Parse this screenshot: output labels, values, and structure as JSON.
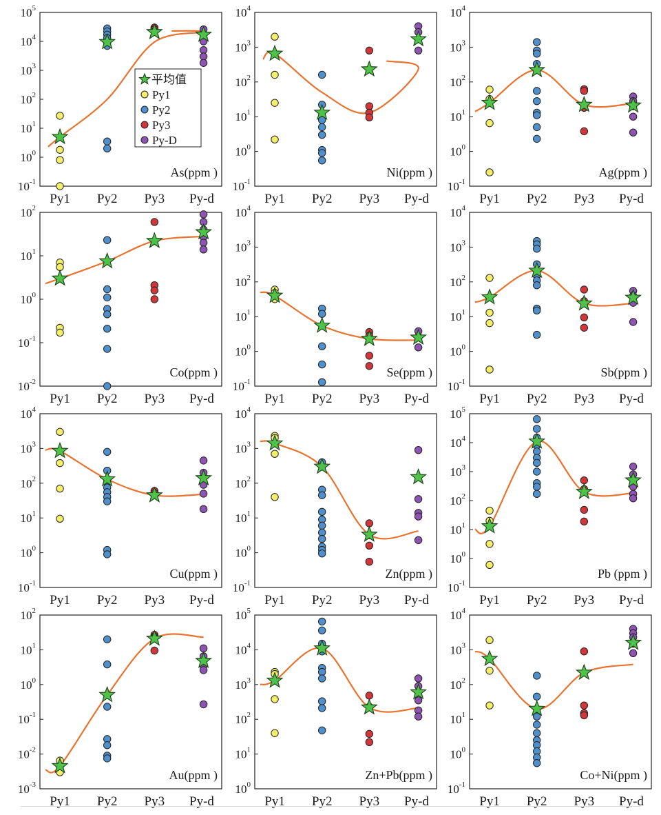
{
  "colors": {
    "Py1": "#f3ef6b",
    "Py2": "#4f90cc",
    "Py3": "#d1363b",
    "Py-d": "#8d54b2",
    "mean": "#4fc249",
    "trend": "#e8732f"
  },
  "legend": {
    "title": "平均值",
    "entries": [
      "Py1",
      "Py2",
      "Py3",
      "Py-D"
    ]
  },
  "chart_data": [
    {
      "type": "scatter",
      "label": "As(ppm )",
      "yscale": "log",
      "ylim_exp": [
        -1,
        5
      ],
      "xcategories": [
        "Py1",
        "Py2",
        "Py3",
        "Py-d"
      ],
      "points": {
        "Py1": [
          27,
          1.8,
          0.8,
          0.1
        ],
        "Py2": [
          28000,
          22000,
          17000,
          13000,
          9000,
          7000,
          3.5,
          2
        ],
        "Py3": [
          30000,
          26000,
          22000
        ],
        "Py-d": [
          26000,
          17000,
          10000,
          5000,
          3000,
          1800
        ]
      },
      "means": {
        "Py1": 5,
        "Py2": 9500,
        "Py3": 21000,
        "Py-d": 17000
      },
      "trend": [
        2.3,
        5,
        100,
        9500,
        21000,
        23000
      ]
    },
    {
      "type": "scatter",
      "label": "Ni(ppm )",
      "yscale": "log",
      "ylim_exp": [
        -1,
        4
      ],
      "xcategories": [
        "Py1",
        "Py2",
        "Py3",
        "Py-d"
      ],
      "points": {
        "Py1": [
          2000,
          160,
          25,
          2.2
        ],
        "Py2": [
          160,
          22,
          8,
          5,
          3,
          1.1,
          0.9,
          0.55
        ],
        "Py3": [
          800,
          20,
          13,
          9.5
        ],
        "Py-d": [
          4000,
          2700,
          1700,
          800
        ]
      },
      "means": {
        "Py1": 650,
        "Py2": 13,
        "Py3": 230,
        "Py-d": 1700
      },
      "trend": [
        450,
        650,
        50,
        13,
        230,
        400
      ]
    },
    {
      "type": "scatter",
      "label": "Ag(ppm )",
      "yscale": "log",
      "ylim_exp": [
        -1,
        4
      ],
      "xcategories": [
        "Py1",
        "Py2",
        "Py3",
        "Py-d"
      ],
      "points": {
        "Py1": [
          60,
          32,
          6.5,
          0.25
        ],
        "Py2": [
          1400,
          800,
          650,
          330,
          55,
          28,
          13,
          11,
          5,
          2.3
        ],
        "Py3": [
          62,
          55,
          18,
          3.8
        ],
        "Py-d": [
          38,
          28,
          20,
          10,
          3.5
        ]
      },
      "means": {
        "Py1": 25,
        "Py2": 220,
        "Py3": 22,
        "Py-d": 21
      },
      "trend": [
        14,
        25,
        220,
        22,
        24
      ]
    },
    {
      "type": "scatter",
      "label": "Co(ppm )",
      "yscale": "log",
      "ylim_exp": [
        -2,
        2
      ],
      "xcategories": [
        "Py1",
        "Py2",
        "Py3",
        "Py-d"
      ],
      "points": {
        "Py1": [
          7,
          5.5,
          0.22,
          0.17
        ],
        "Py2": [
          23,
          1.7,
          1.1,
          0.6,
          0.45,
          0.21,
          0.072,
          0.01
        ],
        "Py3": [
          60,
          2.1,
          1.6,
          1.0
        ],
        "Py-d": [
          90,
          60,
          40,
          27,
          20,
          14
        ]
      },
      "means": {
        "Py1": 3,
        "Py2": 7.5,
        "Py3": 22,
        "Py-d": 35
      },
      "trend": [
        2.3,
        3,
        7.5,
        22,
        28
      ]
    },
    {
      "type": "scatter",
      "label": "Se(ppm )",
      "yscale": "log",
      "ylim_exp": [
        -1,
        4
      ],
      "xcategories": [
        "Py1",
        "Py2",
        "Py3",
        "Py-d"
      ],
      "points": {
        "Py1": [
          60,
          48,
          38,
          32
        ],
        "Py2": [
          17,
          12,
          1.4,
          0.42,
          0.13
        ],
        "Py3": [
          3.6,
          2.8,
          0.75,
          0.38
        ],
        "Py-d": [
          3.8,
          2.6,
          1.3
        ]
      },
      "means": {
        "Py1": 40,
        "Py2": 5.5,
        "Py3": 2.3,
        "Py-d": 2.5
      },
      "trend": [
        50,
        40,
        5.5,
        2.3,
        2.1
      ]
    },
    {
      "type": "scatter",
      "label": "Sb(ppm )",
      "yscale": "log",
      "ylim_exp": [
        -1,
        4
      ],
      "xcategories": [
        "Py1",
        "Py2",
        "Py3",
        "Py-d"
      ],
      "points": {
        "Py1": [
          130,
          13,
          6.5,
          0.3
        ],
        "Py2": [
          1500,
          1200,
          900,
          320,
          150,
          110,
          80,
          17,
          15,
          3
        ],
        "Py3": [
          60,
          28,
          9.5,
          4.8
        ],
        "Py-d": [
          55,
          40,
          25,
          7
        ]
      },
      "means": {
        "Py1": 36,
        "Py2": 210,
        "Py3": 24,
        "Py-d": 35
      },
      "trend": [
        26,
        36,
        210,
        24,
        24
      ]
    },
    {
      "type": "scatter",
      "label": "Cu(ppm )",
      "yscale": "log",
      "ylim_exp": [
        -1,
        4
      ],
      "xcategories": [
        "Py1",
        "Py2",
        "Py3",
        "Py-d"
      ],
      "points": {
        "Py1": [
          3000,
          380,
          70,
          9.5
        ],
        "Py2": [
          800,
          230,
          110,
          75,
          55,
          40,
          30,
          1.2,
          0.9
        ],
        "Py3": [
          60,
          52,
          45
        ],
        "Py-d": [
          450,
          200,
          90,
          50,
          18
        ]
      },
      "means": {
        "Py1": 850,
        "Py2": 130,
        "Py3": 45,
        "Py-d": 140
      },
      "trend": [
        900,
        850,
        130,
        45,
        48
      ]
    },
    {
      "type": "scatter",
      "label": "Zn(ppm )",
      "yscale": "log",
      "ylim_exp": [
        -1,
        4
      ],
      "xcategories": [
        "Py1",
        "Py2",
        "Py3",
        "Py-d"
      ],
      "points": {
        "Py1": [
          2300,
          2000,
          700,
          40
        ],
        "Py2": [
          400,
          300,
          65,
          45,
          15,
          9,
          6,
          3.8,
          2.5,
          1.5,
          1.2,
          0.95
        ],
        "Py3": [
          7,
          3.2,
          1.6,
          0.55
        ],
        "Py-d": [
          900,
          35,
          14,
          11,
          2.3
        ]
      },
      "means": {
        "Py1": 1400,
        "Py2": 300,
        "Py3": 3.3,
        "Py-d": 150
      },
      "trend": [
        1600,
        1400,
        300,
        3.3,
        4.2
      ]
    },
    {
      "type": "scatter",
      "label": "Pb (ppm )",
      "yscale": "log",
      "ylim_exp": [
        -1,
        5
      ],
      "xcategories": [
        "Py1",
        "Py2",
        "Py3",
        "Py-d"
      ],
      "points": {
        "Py1": [
          45,
          20,
          3.2,
          0.6
        ],
        "Py2": [
          65000,
          30000,
          15000,
          8000,
          5000,
          3000,
          2000,
          1000,
          400,
          300,
          170
        ],
        "Py3": [
          500,
          250,
          48,
          19
        ],
        "Py-d": [
          1500,
          800,
          500,
          300,
          170,
          120
        ]
      },
      "means": {
        "Py1": 13,
        "Py2": 11000,
        "Py3": 200,
        "Py-d": 500
      },
      "trend": [
        10,
        13,
        11000,
        200,
        180
      ]
    },
    {
      "type": "scatter",
      "label": "Au(ppm )",
      "yscale": "log",
      "ylim_exp": [
        -3,
        2
      ],
      "xcategories": [
        "Py1",
        "Py2",
        "Py3",
        "Py-d"
      ],
      "points": {
        "Py1": [
          0.0065,
          0.0045,
          0.003
        ],
        "Py2": [
          20,
          3.8,
          0.5,
          0.23,
          0.027,
          0.018,
          0.009,
          0.0075
        ],
        "Py3": [
          27,
          24,
          22,
          9.5
        ],
        "Py-d": [
          11,
          6.5,
          3.5,
          2.6,
          0.27
        ]
      },
      "means": {
        "Py1": 0.0045,
        "Py2": 0.5,
        "Py3": 21,
        "Py-d": 4.8
      },
      "trend": [
        0.0035,
        0.0045,
        0.5,
        21,
        23
      ]
    },
    {
      "type": "scatter",
      "label": "Zn+Pb(ppm  )",
      "yscale": "log",
      "ylim_exp": [
        0,
        5
      ],
      "xcategories": [
        "Py1",
        "Py2",
        "Py3",
        "Py-d"
      ],
      "points": {
        "Py1": [
          2300,
          2000,
          380,
          40
        ],
        "Py2": [
          65000,
          36000,
          15000,
          9000,
          3000,
          2300,
          1500,
          330,
          210,
          48
        ],
        "Py3": [
          480,
          230,
          38,
          22
        ],
        "Py-d": [
          1500,
          900,
          600,
          350,
          180,
          120
        ]
      },
      "means": {
        "Py1": 1300,
        "Py2": 11000,
        "Py3": 220,
        "Py-d": 600
      },
      "trend": [
        1000,
        1300,
        11000,
        220,
        210
      ]
    },
    {
      "type": "scatter",
      "label": "Co+Ni(ppm  )",
      "yscale": "log",
      "ylim_exp": [
        -1,
        4
      ],
      "xcategories": [
        "Py1",
        "Py2",
        "Py3",
        "Py-d"
      ],
      "points": {
        "Py1": [
          1900,
          250,
          25
        ],
        "Py2": [
          180,
          45,
          20,
          12,
          7,
          4,
          2.5,
          1.8,
          1.2,
          0.8,
          0.55
        ],
        "Py3": [
          900,
          25,
          15,
          13
        ],
        "Py-d": [
          4000,
          3000,
          2300,
          1500,
          800
        ]
      },
      "means": {
        "Py1": 550,
        "Py2": 20,
        "Py3": 220,
        "Py-d": 1600
      },
      "trend": [
        900,
        550,
        20,
        220,
        380
      ]
    }
  ]
}
